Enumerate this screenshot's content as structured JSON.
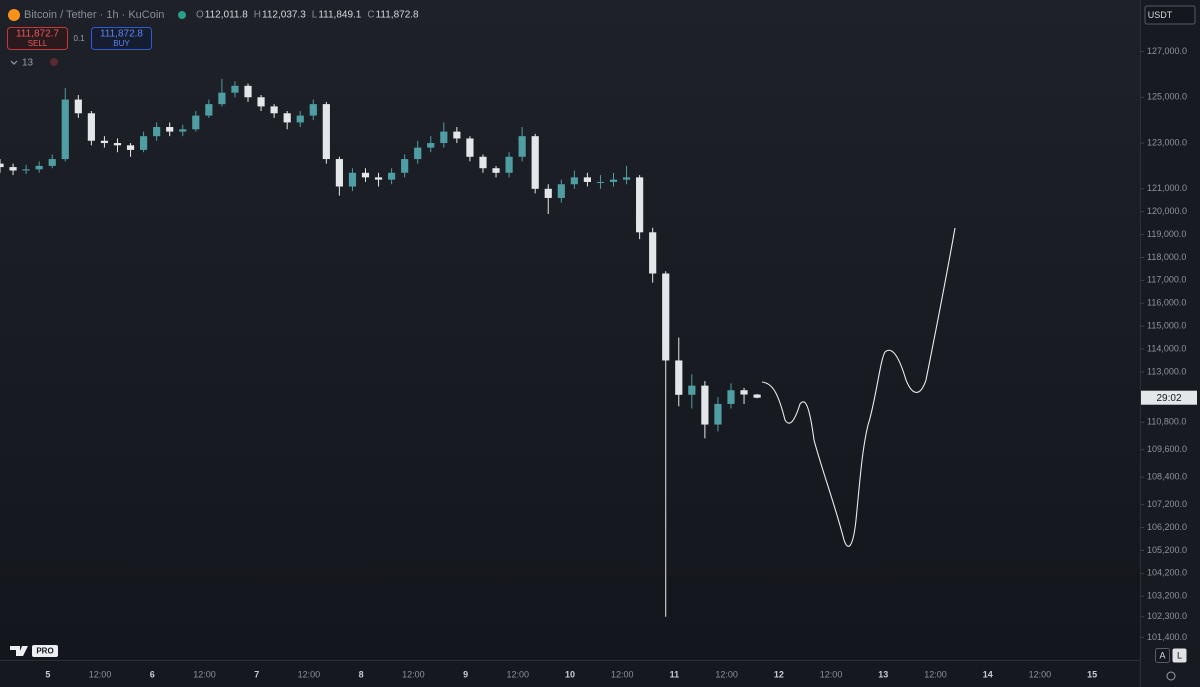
{
  "ui": {
    "symbol": "Bitcoin / Tether · 1h · KuCoin",
    "ohlc": [
      {
        "key": "O",
        "value": "112,011.8"
      },
      {
        "key": "H",
        "value": "112,037.3"
      },
      {
        "key": "L",
        "value": "111,849.1"
      },
      {
        "key": "C",
        "value": "111,872.8"
      }
    ],
    "sell_price": "111,872.7",
    "sell_label": "SELL",
    "spread": "0.1",
    "buy_price": "111,872.8",
    "buy_label": "BUY",
    "indicator_count": "13",
    "currency": "USDT",
    "countdown": "29:02",
    "auto_button": "A",
    "log_button": "L",
    "logo_badge": "PRO"
  },
  "chart_data": {
    "type": "candlestick",
    "up_color": "#4e9ea3",
    "down_color": "#e4e7ea",
    "xlim": [
      -11,
      251
    ],
    "xticks": [
      {
        "value": 0,
        "label": "5"
      },
      {
        "value": 12,
        "label": "12:00"
      },
      {
        "value": 24,
        "label": "6"
      },
      {
        "value": 36,
        "label": "12:00"
      },
      {
        "value": 48,
        "label": "7"
      },
      {
        "value": 60,
        "label": "12:00"
      },
      {
        "value": 72,
        "label": "8"
      },
      {
        "value": 84,
        "label": "12:00"
      },
      {
        "value": 96,
        "label": "9"
      },
      {
        "value": 108,
        "label": "12:00"
      },
      {
        "value": 120,
        "label": "10"
      },
      {
        "value": 132,
        "label": "12:00"
      },
      {
        "value": 144,
        "label": "11"
      },
      {
        "value": 156,
        "label": "12:00"
      },
      {
        "value": 168,
        "label": "12"
      },
      {
        "value": 180,
        "label": "12:00"
      },
      {
        "value": 192,
        "label": "13"
      },
      {
        "value": 204,
        "label": "12:00"
      },
      {
        "value": 216,
        "label": "14"
      },
      {
        "value": 228,
        "label": "12:00"
      },
      {
        "value": 240,
        "label": "15"
      }
    ],
    "ylim": [
      100500,
      128900
    ],
    "yticks": [
      {
        "value": 127000,
        "label": "127,000.0"
      },
      {
        "value": 125000,
        "label": "125,000.0"
      },
      {
        "value": 123000,
        "label": "123,000.0"
      },
      {
        "value": 121000,
        "label": "121,000.0"
      },
      {
        "value": 120000,
        "label": "120,000.0"
      },
      {
        "value": 119000,
        "label": "119,000.0"
      },
      {
        "value": 118000,
        "label": "118,000.0"
      },
      {
        "value": 117000,
        "label": "117,000.0"
      },
      {
        "value": 116000,
        "label": "116,000.0"
      },
      {
        "value": 115000,
        "label": "115,000.0"
      },
      {
        "value": 114000,
        "label": "114,000.0"
      },
      {
        "value": 113000,
        "label": "113,000.0"
      },
      {
        "value": 110800,
        "label": "110,800.0"
      },
      {
        "value": 109600,
        "label": "109,600.0"
      },
      {
        "value": 108400,
        "label": "108,400.0"
      },
      {
        "value": 107200,
        "label": "107,200.0"
      },
      {
        "value": 106200,
        "label": "106,200.0"
      },
      {
        "value": 105200,
        "label": "105,200.0"
      },
      {
        "value": 104200,
        "label": "104,200.0"
      },
      {
        "value": 103200,
        "label": "103,200.0"
      },
      {
        "value": 102300,
        "label": "102,300.0"
      },
      {
        "value": 101400,
        "label": "101,400.0"
      }
    ],
    "x": [
      -11,
      -8,
      -5,
      -2,
      1,
      4,
      7,
      10,
      13,
      16,
      19,
      22,
      25,
      28,
      31,
      34,
      37,
      40,
      43,
      46,
      49,
      52,
      55,
      58,
      61,
      64,
      67,
      70,
      73,
      76,
      79,
      82,
      85,
      88,
      91,
      94,
      97,
      100,
      103,
      106,
      109,
      112,
      115,
      118,
      121,
      124,
      127,
      130,
      133,
      136,
      139,
      142,
      145,
      148,
      151,
      154,
      157,
      160,
      163
    ],
    "open": [
      122100,
      121950,
      121800,
      121850,
      122000,
      122300,
      124900,
      124300,
      123100,
      123000,
      122900,
      122700,
      123300,
      123700,
      123500,
      123600,
      124200,
      124700,
      125200,
      125500,
      125000,
      124600,
      124300,
      123900,
      124200,
      124700,
      122300,
      121100,
      121700,
      121500,
      121400,
      121700,
      122300,
      122800,
      123000,
      123500,
      123200,
      122400,
      121900,
      121700,
      122400,
      123300,
      121000,
      120600,
      121200,
      121500,
      121300,
      121300,
      121400,
      121500,
      119100,
      117300,
      113500,
      112000,
      112400,
      110700,
      111600,
      112200,
      112011.8
    ],
    "high": [
      122300,
      122100,
      122050,
      122200,
      122500,
      125400,
      125100,
      124400,
      123300,
      123200,
      123000,
      123500,
      123900,
      123900,
      123800,
      124400,
      124900,
      125800,
      125700,
      125600,
      125100,
      124700,
      124400,
      124400,
      124900,
      124800,
      122400,
      121900,
      121900,
      121700,
      121900,
      122500,
      123100,
      123300,
      123900,
      123700,
      123300,
      122500,
      122000,
      122600,
      123700,
      123400,
      121200,
      121400,
      121800,
      121700,
      121600,
      121700,
      122000,
      121600,
      119300,
      117400,
      114500,
      112900,
      112600,
      111900,
      112500,
      112300,
      112037.3
    ],
    "low": [
      121700,
      121600,
      121650,
      121700,
      121900,
      122200,
      124100,
      122900,
      122800,
      122600,
      122400,
      122600,
      123100,
      123300,
      123300,
      123500,
      124100,
      124600,
      125000,
      124800,
      124400,
      124100,
      123600,
      123700,
      124000,
      122100,
      120700,
      120900,
      121300,
      121100,
      121200,
      121500,
      122100,
      122600,
      122800,
      123000,
      122200,
      121700,
      121500,
      121500,
      122200,
      120800,
      119900,
      120400,
      121000,
      121100,
      121000,
      121100,
      121200,
      118800,
      116900,
      102300,
      111500,
      111400,
      110100,
      110400,
      111400,
      111600,
      111849.1
    ],
    "close": [
      121950,
      121800,
      121850,
      122000,
      122300,
      124900,
      124300,
      123100,
      123000,
      122900,
      122700,
      123300,
      123700,
      123500,
      123600,
      124200,
      124700,
      125200,
      125500,
      125000,
      124600,
      124300,
      123900,
      124200,
      124700,
      122300,
      121100,
      121700,
      121500,
      121400,
      121700,
      122300,
      122800,
      123000,
      123500,
      123200,
      122400,
      121900,
      121700,
      122400,
      123300,
      121000,
      120600,
      121200,
      121500,
      121300,
      121300,
      121400,
      121500,
      119100,
      117300,
      113500,
      112000,
      112400,
      110700,
      111600,
      112200,
      112011.8,
      111872.8
    ]
  }
}
